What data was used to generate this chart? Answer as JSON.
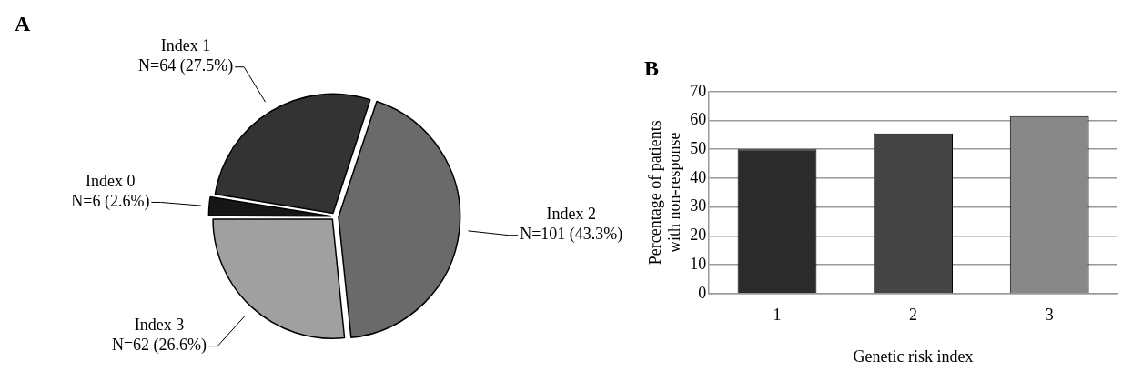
{
  "chart_data": [
    {
      "type": "pie",
      "title": "A",
      "categories": [
        "Index 0",
        "Index 1",
        "Index 2",
        "Index 3"
      ],
      "values": [
        6,
        64,
        101,
        62
      ],
      "colors": [
        "#161616",
        "#333333",
        "#6a6a6a",
        "#a0a0a0"
      ],
      "value_labels": [
        "N=6 (2.6%)",
        "N=64 (27.5%)",
        "N=101 (43.3%)",
        "N=62 (26.6%)"
      ],
      "legend": false
    },
    {
      "type": "bar",
      "title": "B",
      "categories": [
        "1",
        "2",
        "3"
      ],
      "values": [
        50,
        55.5,
        61.5
      ],
      "colors": [
        "#2b2b2b",
        "#444444",
        "#888888"
      ],
      "xlabel": "Genetic risk index",
      "ylabel": "Percentage of patients with non-response",
      "ylim": [
        0,
        70
      ],
      "yticks": [
        0,
        10,
        20,
        30,
        40,
        50,
        60,
        70
      ],
      "grid": "y",
      "legend": false
    }
  ]
}
